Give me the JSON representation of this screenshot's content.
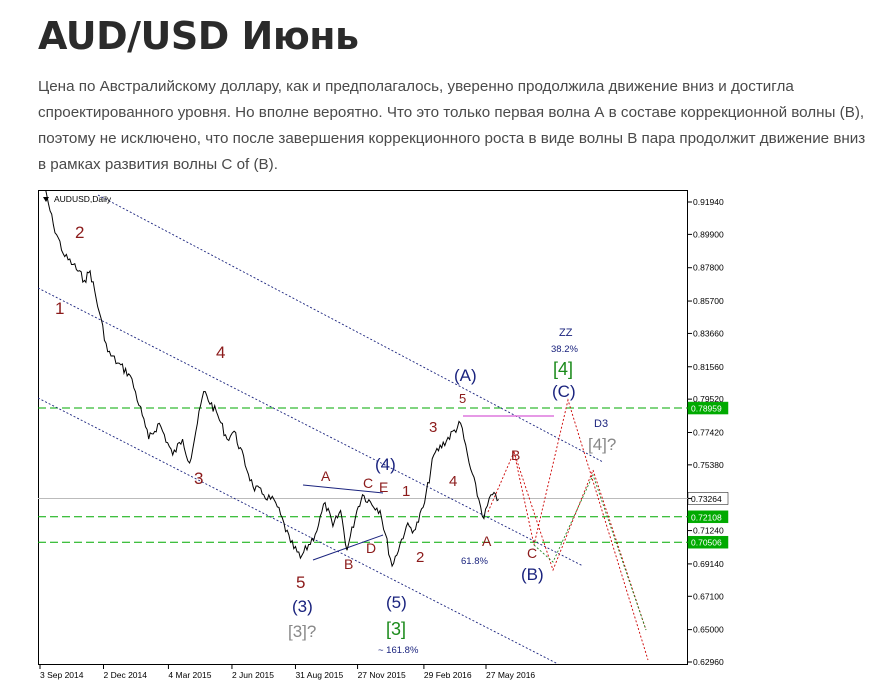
{
  "article": {
    "title": "AUD/USD Июнь",
    "paragraph": "Цена по Австралийскому доллару, как и предполагалось, уверенно продолжила движение вниз и достигла спроектированного уровня. Но вполне вероятно. Что это только первая волна А в составе коррекционной волны (В), поэтому не исключено, что после завершения коррекционного роста в виде волны В пара продолжит движение вниз в рамках развития волны С of (В)."
  },
  "chart_data": {
    "type": "line",
    "symbol": "AUDUSD,Daily",
    "series": [
      {
        "x": [
          "3 Sep 2014",
          "22 Sep 2014",
          "8 Oct 2014",
          "20 Oct 2014",
          "5 Nov 2014",
          "13 Nov 2014",
          "26 Nov 2014",
          "8 Dec 2014",
          "22 Dec 2014",
          "9 Jan 2015",
          "26 Jan 2015",
          "4 Feb 2015",
          "19 Feb 2015",
          "10 Mar 2015",
          "24 Mar 2015",
          "3 Apr 2015",
          "14 Apr 2015",
          "23 Apr 2015",
          "13 May 2015",
          "26 May 2015",
          "5 Jun 2015",
          "2 Jul 2015",
          "17 Jul 2015",
          "3 Aug 2015",
          "24 Aug 2015",
          "7 Sep 2015",
          "28 Sep 2015",
          "12 Oct 2015",
          "23 Oct 2015",
          "3 Nov 2015",
          "12 Nov 2015",
          "26 Nov 2015",
          "4 Dec 2015",
          "29 Dec 2015",
          "15 Jan 2016",
          "4 Feb 2016",
          "17 Feb 2016",
          "1 Mar 2016",
          "14 Mar 2016",
          "21 Apr 2016",
          "3 May 2016",
          "24 May 2016",
          "3 Jun 2016",
          "14 Jun 2016"
        ],
        "values": [
          0.94,
          0.905,
          0.885,
          0.88,
          0.87,
          0.876,
          0.85,
          0.825,
          0.818,
          0.81,
          0.785,
          0.77,
          0.78,
          0.76,
          0.77,
          0.755,
          0.78,
          0.8,
          0.785,
          0.77,
          0.775,
          0.74,
          0.735,
          0.73,
          0.705,
          0.695,
          0.71,
          0.73,
          0.715,
          0.725,
          0.7,
          0.725,
          0.735,
          0.725,
          0.69,
          0.715,
          0.713,
          0.73,
          0.76,
          0.78,
          0.755,
          0.72,
          0.735,
          0.732
        ]
      }
    ],
    "x_ticks": [
      "3 Sep 2014",
      "2 Dec 2014",
      "4 Mar 2015",
      "2 Jun 2015",
      "31 Aug 2015",
      "27 Nov 2015",
      "29 Feb 2016",
      "27 May 2016"
    ],
    "y_ticks": [
      "0.91940",
      "0.89900",
      "0.87800",
      "0.85700",
      "0.83660",
      "0.81560",
      "0.79520",
      "0.77420",
      "0.75380",
      "0.73264",
      "0.71240",
      "0.69140",
      "0.67100",
      "0.65000",
      "0.62960"
    ],
    "horizontal_levels": [
      {
        "value": "0.78959",
        "color": "#00aa00",
        "style": "dashed"
      },
      {
        "value": "0.73264",
        "color": "#bbbbbb",
        "style": "solid"
      },
      {
        "value": "0.72108",
        "color": "#00aa00",
        "style": "dashed"
      },
      {
        "value": "0.70506",
        "color": "#00aa00",
        "style": "dashed"
      }
    ],
    "wave_labels": {
      "l1": "1",
      "l2": "2",
      "l3": "3",
      "l4": "4",
      "l5": "5",
      "p3": "(3)",
      "b3": "[3]?",
      "A": "A",
      "B": "B",
      "C": "C",
      "D": "D",
      "E": "E",
      "p4": "(4)",
      "p5": "(5)",
      "g3": "[3]",
      "fib161": "~ 161.8%",
      "n1": "1",
      "n2": "2",
      "n3": "3",
      "n4": "4",
      "n5": "5",
      "pA": "(A)",
      "A2": "A",
      "fib618": "61.8%",
      "B2": "B",
      "C2": "C",
      "pB": "(B)",
      "zz": "ZZ",
      "fib382": "38.2%",
      "g4": "[4]",
      "pC": "(C)",
      "d3": "D3",
      "q4": "[4]?"
    },
    "colors": {
      "wave_primary": "#8b1a1a",
      "wave_intermediate": "#1a237e",
      "wave_cycle": "#1a8a1a",
      "wave_alt": "#888888",
      "level_line": "#00aa00",
      "channel": "#1a237e",
      "projection_primary": "#cc0000",
      "projection_alt": "#228822",
      "marker_line": "#cc33cc"
    }
  }
}
